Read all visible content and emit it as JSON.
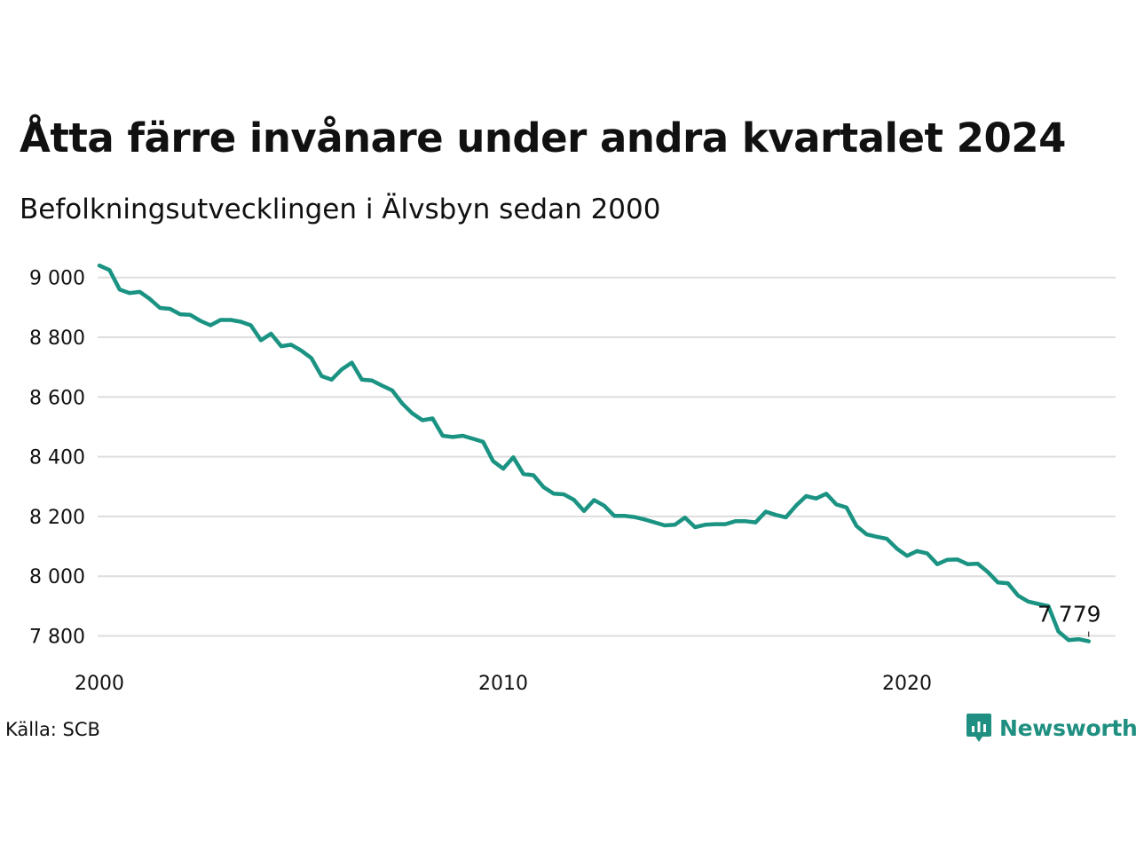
{
  "title": "Åtta färre invånare under andra kvartalet 2024",
  "subtitle": "Befolkningsutvecklingen i Älvsbyn sedan 2000",
  "source": "Källa: SCB",
  "brand": {
    "name": "Newsworthy",
    "icon": "newsworthy-logo-icon"
  },
  "colors": {
    "line": "#1a9383",
    "grid": "#dddddd",
    "brand": "#1e8f80"
  },
  "chart_data": {
    "type": "line",
    "title": "Åtta färre invånare under andra kvartalet 2024",
    "subtitle": "Befolkningsutvecklingen i Älvsbyn sedan 2000",
    "xlabel": "",
    "ylabel": "",
    "grid": true,
    "ylim": [
      7700,
      9050
    ],
    "y_ticks": [
      9000,
      8800,
      8600,
      8400,
      8200,
      8000,
      7800
    ],
    "y_tick_labels": [
      "9 000",
      "8 800",
      "8 600",
      "8 400",
      "8 200",
      "8 000",
      "7 800"
    ],
    "x_ticks": [
      2000,
      2010,
      2020
    ],
    "x_tick_labels": [
      "2000",
      "2010",
      "2020"
    ],
    "x_start": "2000Q1",
    "end_label": "7 779",
    "values": [
      9040,
      9025,
      8960,
      8948,
      8952,
      8928,
      8898,
      8895,
      8877,
      8875,
      8855,
      8840,
      8858,
      8858,
      8852,
      8840,
      8790,
      8812,
      8770,
      8775,
      8755,
      8730,
      8670,
      8658,
      8692,
      8715,
      8658,
      8655,
      8638,
      8622,
      8578,
      8545,
      8522,
      8528,
      8470,
      8466,
      8470,
      8460,
      8450,
      8385,
      8360,
      8398,
      8342,
      8338,
      8298,
      8276,
      8274,
      8256,
      8218,
      8255,
      8236,
      8202,
      8202,
      8198,
      8190,
      8180,
      8170,
      8172,
      8196,
      8164,
      8172,
      8174,
      8174,
      8184,
      8184,
      8180,
      8216,
      8205,
      8197,
      8236,
      8268,
      8260,
      8276,
      8240,
      8230,
      8168,
      8140,
      8132,
      8125,
      8092,
      8068,
      8084,
      8076,
      8040,
      8055,
      8056,
      8040,
      8042,
      8014,
      7979,
      7976,
      7935,
      7915,
      7907,
      7900,
      7815,
      7786,
      7789,
      7782
    ]
  }
}
